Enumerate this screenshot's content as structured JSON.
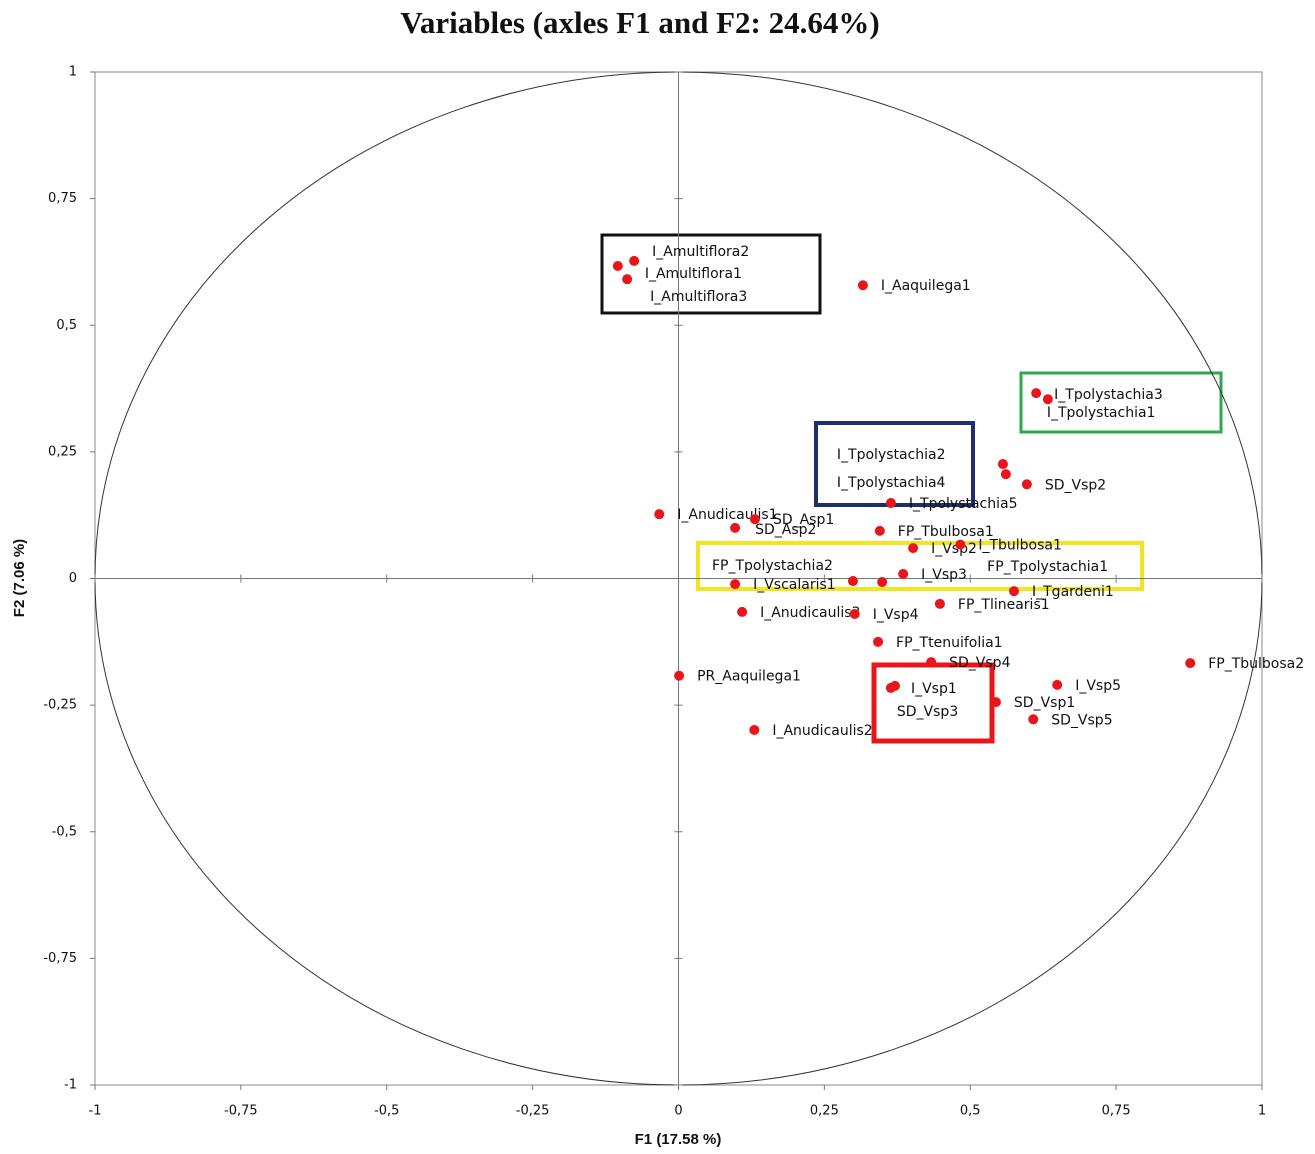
{
  "chart_data": {
    "type": "scatter",
    "title": "Variables (axles F1 and F2: 24.64%)",
    "xlabel": "F1 (17.58 %)",
    "ylabel": "F2 (7.06 %)",
    "xlim": [
      -1,
      1
    ],
    "ylim": [
      -1,
      1
    ],
    "xticks": [
      -1,
      {
        "value": -0.75,
        "label": "-0,75"
      },
      {
        "value": -0.5,
        "label": "-0,5"
      },
      {
        "value": -0.25,
        "label": "-0,25"
      },
      0,
      {
        "value": 0.25,
        "label": "0,25"
      },
      {
        "value": 0.5,
        "label": "0,5"
      },
      {
        "value": 0.75,
        "label": "0,75"
      },
      1
    ],
    "yticks": [
      -1,
      {
        "value": -0.75,
        "label": "-0,75"
      },
      {
        "value": -0.5,
        "label": "-0,5"
      },
      {
        "value": -0.25,
        "label": "-0,25"
      },
      0,
      {
        "value": 0.25,
        "label": "0,25"
      },
      {
        "value": 0.5,
        "label": "0,5"
      },
      {
        "value": 0.75,
        "label": "0,75"
      },
      1
    ],
    "color": "#e8161b",
    "labels": [
      "I_Amultiflora2",
      "I_Amultiflora1",
      "I_Amultiflora3",
      "I_Aaquilega1",
      "I_Tpolystachia3",
      "I_Tpolystachia1",
      "I_Tpolystachia2",
      "I_Tpolystachia4",
      "SD_Vsp2",
      "I_Tpolystachia5",
      "I_Anudicaulis1",
      "SD_Asp1",
      "SD_Asp2",
      "FP_Tbulbosa1",
      "I_Vsp2",
      "I_Tbulbosa1",
      "FP_Tpolystachia2",
      "I_Vsp3",
      "FP_Tpolystachia1",
      "I_Vscalaris1",
      "I_Tgardeni1",
      "I_Anudicaulis3",
      "I_Vsp4",
      "FP_Tlinearis1",
      "FP_Ttenuifolia1",
      "SD_Vsp4",
      "FP_Tbulbosa2",
      "PR_Aaquilega1",
      "I_Vsp1",
      "SD_Vsp3",
      "I_Vsp5",
      "SD_Vsp1",
      "SD_Vsp5",
      "I_Anudicaulis2"
    ],
    "x": [
      -0.076,
      -0.104,
      -0.088,
      0.316,
      0.613,
      0.633,
      0.556,
      0.561,
      0.597,
      0.364,
      -0.033,
      0.131,
      0.097,
      0.345,
      0.402,
      0.483,
      0.299,
      0.385,
      0.349,
      0.097,
      0.575,
      0.109,
      0.302,
      0.448,
      0.342,
      0.433,
      0.877,
      0.001,
      0.371,
      0.364,
      0.649,
      0.544,
      0.608,
      0.13
    ],
    "y": [
      0.627,
      0.617,
      0.591,
      0.579,
      0.366,
      0.354,
      0.226,
      0.206,
      0.186,
      0.149,
      0.127,
      0.117,
      0.1,
      0.094,
      0.06,
      0.067,
      -0.005,
      0.009,
      -0.007,
      -0.011,
      -0.025,
      -0.066,
      -0.07,
      -0.05,
      -0.125,
      -0.165,
      -0.167,
      -0.192,
      -0.212,
      -0.216,
      -0.21,
      -0.244,
      -0.278,
      -0.299
    ]
  }
}
